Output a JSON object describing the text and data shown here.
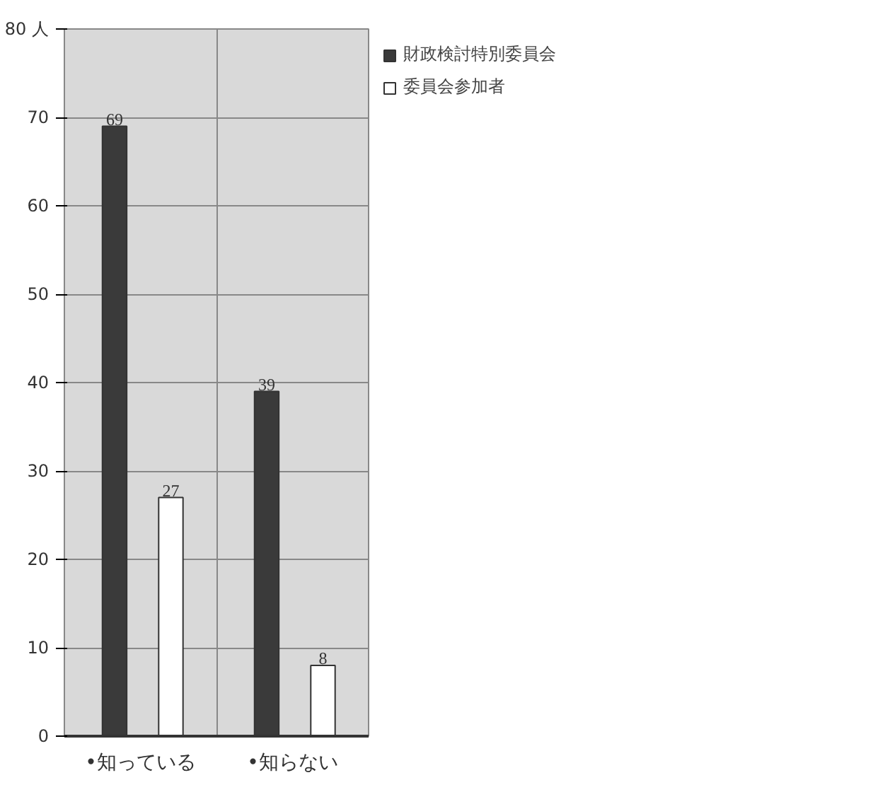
{
  "chart_data": {
    "type": "bar",
    "categories": [
      "•知っている",
      "•知らない"
    ],
    "series": [
      {
        "name": "財政検討特別委員会",
        "color": "#3a3a3a",
        "values": [
          69,
          39
        ]
      },
      {
        "name": "委員会参加者",
        "color": "#ffffff",
        "values": [
          27,
          8
        ]
      }
    ],
    "ylim": [
      0,
      80
    ],
    "yticks": [
      0,
      10,
      20,
      30,
      40,
      50,
      60,
      70,
      {
        "value": 80,
        "label": "80 人"
      }
    ],
    "grid": true,
    "legend": "top right",
    "data_labels": true
  }
}
